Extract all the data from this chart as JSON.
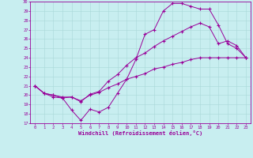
{
  "xlabel": "Windchill (Refroidissement éolien,°C)",
  "bg_color": "#c8eef0",
  "line_color": "#990099",
  "ylim": [
    17,
    30
  ],
  "xlim": [
    -0.5,
    23.5
  ],
  "yticks": [
    17,
    18,
    19,
    20,
    21,
    22,
    23,
    24,
    25,
    26,
    27,
    28,
    29,
    30
  ],
  "xticks": [
    0,
    1,
    2,
    3,
    4,
    5,
    6,
    7,
    8,
    9,
    10,
    11,
    12,
    13,
    14,
    15,
    16,
    17,
    18,
    19,
    20,
    21,
    22,
    23
  ],
  "line1_x": [
    0,
    1,
    2,
    3,
    4,
    5,
    6,
    7,
    8,
    9,
    10,
    11,
    12,
    13,
    14,
    15,
    16,
    17,
    18,
    19,
    20,
    21,
    22,
    23
  ],
  "line1_y": [
    21.0,
    20.2,
    20.0,
    19.7,
    18.4,
    17.3,
    18.5,
    18.2,
    18.7,
    20.2,
    21.7,
    23.8,
    26.5,
    27.0,
    29.0,
    29.8,
    29.8,
    29.5,
    29.2,
    29.2,
    27.5,
    25.5,
    25.0,
    24.0
  ],
  "line2_x": [
    0,
    1,
    2,
    3,
    4,
    5,
    6,
    7,
    8,
    9,
    10,
    11,
    12,
    13,
    14,
    15,
    16,
    17,
    18,
    19,
    20,
    21,
    22,
    23
  ],
  "line2_y": [
    21.0,
    20.2,
    20.0,
    19.8,
    19.8,
    19.4,
    20.0,
    20.3,
    20.8,
    21.2,
    21.7,
    22.0,
    22.3,
    22.8,
    23.0,
    23.3,
    23.5,
    23.8,
    24.0,
    24.0,
    24.0,
    24.0,
    24.0,
    24.0
  ],
  "line3_x": [
    0,
    1,
    2,
    3,
    4,
    5,
    6,
    7,
    8,
    9,
    10,
    11,
    12,
    13,
    14,
    15,
    16,
    17,
    18,
    19,
    20,
    21,
    22,
    23
  ],
  "line3_y": [
    21.0,
    20.2,
    19.8,
    19.7,
    19.8,
    19.3,
    20.1,
    20.4,
    21.5,
    22.2,
    23.2,
    24.0,
    24.5,
    25.2,
    25.8,
    26.3,
    26.8,
    27.3,
    27.7,
    27.3,
    25.5,
    25.8,
    25.3,
    24.0
  ]
}
